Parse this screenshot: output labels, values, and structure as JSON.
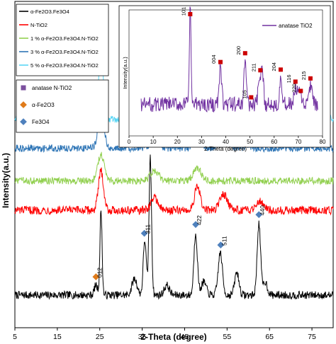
{
  "chart_data": [
    {
      "type": "line",
      "xlabel": "2-Theta (degree)",
      "ylabel": "Intensity(a.u.)",
      "xlim": [
        5,
        80
      ],
      "xticks": [
        "5",
        "15",
        "25",
        "35",
        "45",
        "55",
        "65",
        "75"
      ],
      "legend_position": "top-left",
      "series": [
        {
          "name": "α-Fe2O3.Fe3O4",
          "color": "#000000",
          "baseline": 0.1,
          "noise": 0.012,
          "peaks": [
            [
              24.1,
              0.03,
              0.4
            ],
            [
              25.3,
              0.26,
              0.25
            ],
            [
              33.2,
              0.05,
              0.6
            ],
            [
              35.6,
              0.17,
              0.35
            ],
            [
              36.9,
              0.42,
              0.3
            ],
            [
              40.8,
              0.03,
              0.6
            ],
            [
              49.5,
              0.04,
              0.6
            ],
            [
              47.6,
              0.19,
              0.4
            ],
            [
              53.4,
              0.13,
              0.5
            ],
            [
              57.3,
              0.07,
              0.5
            ],
            [
              62.5,
              0.22,
              0.4
            ],
            [
              64.0,
              0.04,
              0.5
            ]
          ]
        },
        {
          "name": "N-TiO2",
          "color": "#ff0000",
          "baseline": 0.36,
          "noise": 0.013,
          "peaks": [
            [
              25.3,
              0.12,
              0.6
            ],
            [
              37.9,
              0.04,
              0.8
            ],
            [
              48.0,
              0.07,
              0.7
            ],
            [
              54.2,
              0.05,
              0.9
            ],
            [
              62.7,
              0.03,
              0.9
            ]
          ]
        },
        {
          "name": "1 % α-Fe2O3.Fe3O4.N-TiO2",
          "color": "#92d050",
          "baseline": 0.45,
          "noise": 0.011,
          "peaks": [
            [
              25.3,
              0.08,
              0.8
            ],
            [
              37.9,
              0.03,
              1.0
            ],
            [
              48.0,
              0.04,
              0.9
            ]
          ]
        },
        {
          "name": "3 % α-Fe2O3.Fe3O4.N-TiO2",
          "color": "#2e75b6",
          "baseline": 0.55,
          "noise": 0.011,
          "peaks": [
            [
              25.3,
              0.11,
              0.7
            ],
            [
              37.9,
              0.03,
              1.0
            ],
            [
              48.0,
              0.06,
              0.8
            ],
            [
              54.2,
              0.04,
              1.0
            ]
          ]
        },
        {
          "name": "5 % α-Fe2O3.Fe3O4.N-TiO2",
          "color": "#5bd6f5",
          "baseline": 0.64,
          "noise": 0.012,
          "peaks": [
            [
              25.3,
              0.22,
              0.5
            ],
            [
              37.9,
              0.05,
              0.7
            ],
            [
              48.0,
              0.06,
              0.7
            ],
            [
              54.2,
              0.05,
              0.8
            ],
            [
              62.7,
              0.03,
              0.9
            ]
          ]
        }
      ],
      "markers": [
        {
          "kind": "anatase",
          "label": "101",
          "x": 25.3
        },
        {
          "kind": "anatase",
          "label": "004",
          "x": 37.8
        },
        {
          "kind": "anatase",
          "label": "200",
          "x": 48.1
        },
        {
          "kind": "anatase",
          "label": "105",
          "x": 53.9
        },
        {
          "kind": "anatase",
          "label": "211",
          "x": 55.1
        },
        {
          "kind": "anatase",
          "label": "204",
          "x": 62.7
        },
        {
          "kind": "anatase",
          "label": "116",
          "x": 68.8
        },
        {
          "kind": "anatase",
          "label": "220",
          "x": 70.3
        },
        {
          "kind": "anatase",
          "label": "215",
          "x": 75.0
        },
        {
          "kind": "hematite",
          "label": "012",
          "x": 24.1
        },
        {
          "kind": "magnetite",
          "label": "311",
          "x": 35.5
        },
        {
          "kind": "magnetite",
          "label": "422",
          "x": 47.6
        },
        {
          "kind": "magnetite",
          "label": "511",
          "x": 53.5
        },
        {
          "kind": "magnetite",
          "label": "440",
          "x": 62.5
        }
      ],
      "symbol_legend": [
        {
          "kind": "anatase",
          "text": "anatase N-TiO2",
          "color": "#7b4f9e",
          "shape": "square"
        },
        {
          "kind": "hematite",
          "text": "α-Fe2O3",
          "color": "#e07b1a",
          "shape": "diamond"
        },
        {
          "kind": "magnetite",
          "text": "Fe3O4",
          "color": "#4f81bd",
          "shape": "diamond"
        }
      ]
    },
    {
      "type": "line",
      "position": "inset",
      "xlabel": "2-Theta (degree)",
      "ylabel": "Intensity(a.u.)",
      "xlim": [
        0,
        80
      ],
      "xticks": [
        "0",
        "10",
        "20",
        "30",
        "40",
        "50",
        "60",
        "70",
        "80"
      ],
      "legend_position": "top-right",
      "series": [
        {
          "name": "anatase TiO2",
          "color": "#7030a0",
          "baseline": 0.25,
          "noise": 0.06,
          "peaks": [
            [
              25.3,
              0.75,
              0.35
            ],
            [
              37.8,
              0.28,
              0.5
            ],
            [
              48.0,
              0.35,
              0.5
            ],
            [
              53.9,
              0.2,
              0.5
            ],
            [
              55.1,
              0.25,
              0.5
            ],
            [
              62.7,
              0.22,
              0.5
            ],
            [
              68.8,
              0.12,
              0.6
            ],
            [
              70.3,
              0.1,
              0.6
            ],
            [
              75.0,
              0.15,
              0.6
            ]
          ]
        }
      ],
      "markers": [
        {
          "label": "101",
          "x": 25.3
        },
        {
          "label": "004",
          "x": 37.8
        },
        {
          "label": "200",
          "x": 48.0
        },
        {
          "label": "105",
          "x": 50.5
        },
        {
          "label": "211",
          "x": 54.3
        },
        {
          "label": "204",
          "x": 62.7
        },
        {
          "label": "116",
          "x": 68.8
        },
        {
          "label": "220",
          "x": 71.0
        },
        {
          "label": "215",
          "x": 75.0
        }
      ]
    }
  ]
}
